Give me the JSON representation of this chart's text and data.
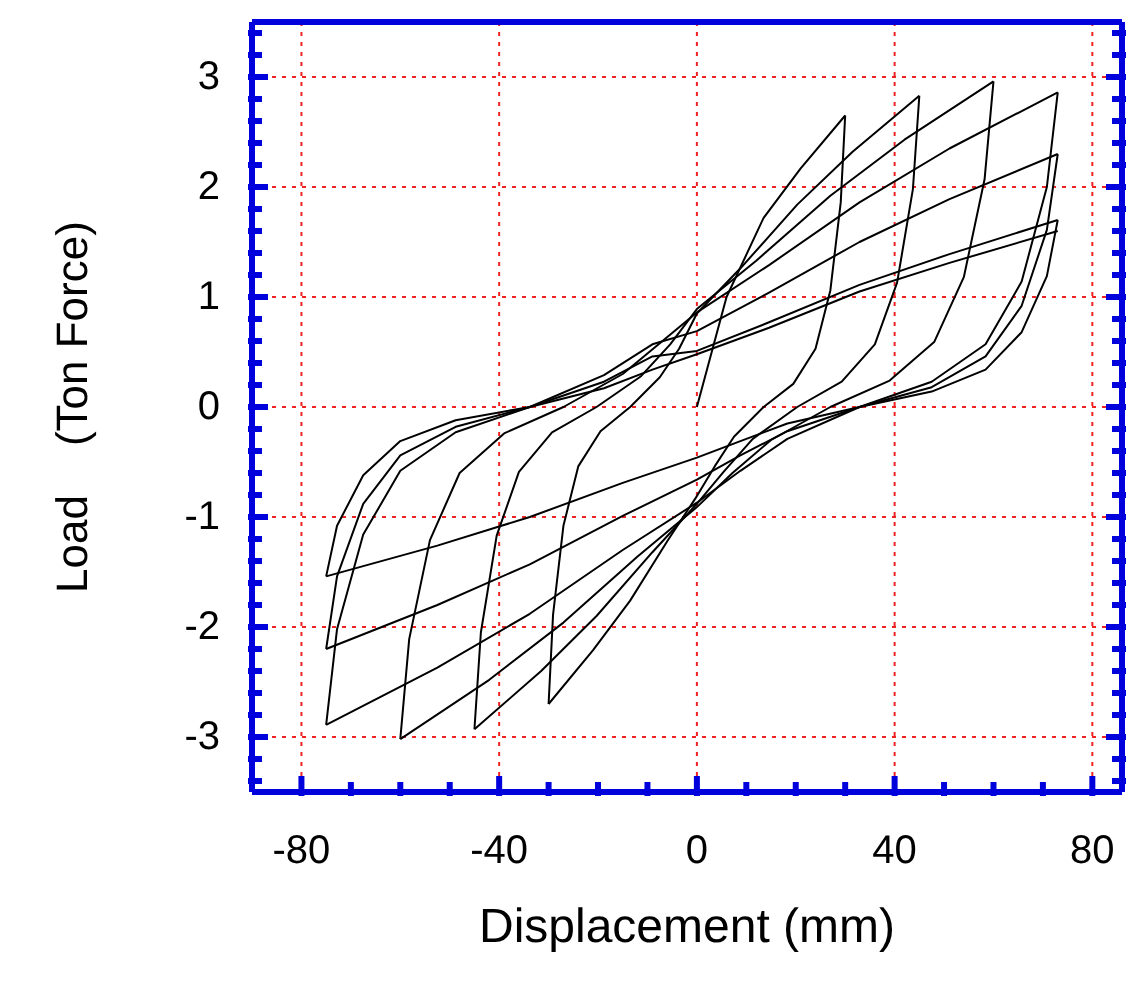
{
  "chart_data": {
    "type": "line",
    "xlabel": "Displacement (mm)",
    "ylabel": "Load    (Ton Force)",
    "marker": "none",
    "line_style": "solid",
    "grid": true,
    "xlim": [
      -90,
      86
    ],
    "ylim": [
      -3.5,
      3.5
    ],
    "xticks": [
      -80,
      {
        "value": -70,
        "label": null
      },
      {
        "value": -60,
        "label": null
      },
      {
        "value": -50,
        "label": null
      },
      -40,
      {
        "value": -30,
        "label": null
      },
      {
        "value": -20,
        "label": null
      },
      {
        "value": -10,
        "label": null
      },
      0,
      {
        "value": 10,
        "label": null
      },
      {
        "value": 20,
        "label": null
      },
      {
        "value": 30,
        "label": null
      },
      40,
      {
        "value": 50,
        "label": null
      },
      {
        "value": 60,
        "label": null
      },
      {
        "value": 70,
        "label": null
      },
      80
    ],
    "yticks": [
      {
        "value": -3.4,
        "label": null
      },
      {
        "value": -3.2,
        "label": null
      },
      -3,
      {
        "value": -2.8,
        "label": null
      },
      {
        "value": -2.6,
        "label": null
      },
      {
        "value": -2.4,
        "label": null
      },
      {
        "value": -2.2,
        "label": null
      },
      -2,
      {
        "value": -1.8,
        "label": null
      },
      {
        "value": -1.6,
        "label": null
      },
      {
        "value": -1.4,
        "label": null
      },
      {
        "value": -1.2,
        "label": null
      },
      -1,
      {
        "value": -0.8,
        "label": null
      },
      {
        "value": -0.6,
        "label": null
      },
      {
        "value": -0.4,
        "label": null
      },
      {
        "value": -0.2,
        "label": null
      },
      0,
      {
        "value": 0.2,
        "label": null
      },
      {
        "value": 0.4,
        "label": null
      },
      {
        "value": 0.6,
        "label": null
      },
      {
        "value": 0.8,
        "label": null
      },
      1,
      {
        "value": 1.2,
        "label": null
      },
      {
        "value": 1.4,
        "label": null
      },
      {
        "value": 1.6,
        "label": null
      },
      {
        "value": 1.8,
        "label": null
      },
      2,
      {
        "value": 2.2,
        "label": null
      },
      {
        "value": 2.4,
        "label": null
      },
      {
        "value": 2.6,
        "label": null
      },
      {
        "value": 2.8,
        "label": null
      },
      3,
      {
        "value": 3.2,
        "label": null
      },
      {
        "value": 3.4,
        "label": null
      }
    ],
    "series": [
      {
        "color": "#000000",
        "x": [
          0,
          3,
          6,
          13.5,
          21,
          30
        ],
        "values": [
          0,
          0.5,
          1.0,
          1.72,
          2.17,
          2.65
        ]
      },
      {
        "color": "#000000",
        "x": [
          30,
          29.1,
          27,
          24,
          19.5,
          13.5,
          7.5,
          3.6,
          0,
          -6,
          -13.5,
          -21,
          -30
        ],
        "values": [
          2.65,
          1.86,
          1.06,
          0.53,
          0.21,
          0,
          -0.27,
          -0.54,
          -0.81,
          -1.22,
          -1.76,
          -2.21,
          -2.7
        ]
      },
      {
        "color": "#000000",
        "x": [
          -30,
          -29.1,
          -27,
          -24,
          -19.5,
          -13.5,
          -7.5,
          -3.6,
          0,
          9,
          20.3,
          31.5,
          45
        ],
        "values": [
          -2.7,
          -1.89,
          -1.08,
          -0.54,
          -0.22,
          0,
          0.27,
          0.53,
          0.85,
          1.27,
          1.84,
          2.32,
          2.83
        ]
      },
      {
        "color": "#000000",
        "x": [
          45,
          43.7,
          40.5,
          36,
          29.3,
          20.3,
          11.3,
          5.4,
          0,
          -9,
          -20.3,
          -31.5,
          -45
        ],
        "values": [
          2.83,
          1.98,
          1.13,
          0.57,
          0.23,
          0,
          -0.29,
          -0.59,
          -0.88,
          -1.32,
          -1.9,
          -2.4,
          -2.93
        ]
      },
      {
        "color": "#000000",
        "x": [
          -45,
          -43.7,
          -40.5,
          -36,
          -29.3,
          -20.3,
          -11.3,
          -5.4,
          0,
          12,
          27,
          42,
          60
        ],
        "values": [
          -2.93,
          -2.05,
          -1.17,
          -0.59,
          -0.23,
          0,
          0.28,
          0.57,
          0.89,
          1.33,
          1.92,
          2.43,
          2.96
        ]
      },
      {
        "color": "#000000",
        "x": [
          60,
          58.2,
          54,
          48,
          39,
          27,
          15,
          7.2,
          0,
          -12,
          -27,
          -42,
          -60
        ],
        "values": [
          2.96,
          2.07,
          1.18,
          0.59,
          0.24,
          0,
          -0.3,
          -0.6,
          -0.91,
          -1.36,
          -1.96,
          -2.48,
          -3.02
        ]
      },
      {
        "color": "#000000",
        "x": [
          -60,
          -58.2,
          -54,
          -48,
          -39,
          -27,
          -15,
          -7.2,
          0,
          14.6,
          32.9,
          51.1,
          73
        ],
        "values": [
          -3.02,
          -2.11,
          -1.21,
          -0.6,
          -0.24,
          0,
          0.3,
          0.59,
          0.86,
          1.29,
          1.86,
          2.35,
          2.86
        ]
      },
      {
        "color": "#000000",
        "x": [
          73,
          70.8,
          65.7,
          58.4,
          47.5,
          32.9,
          18.3,
          8.8,
          0,
          -15,
          -33.8,
          -52.5,
          -75
        ],
        "values": [
          2.86,
          2.0,
          1.14,
          0.57,
          0.23,
          0,
          -0.29,
          -0.58,
          -0.87,
          -1.3,
          -1.88,
          -2.37,
          -2.89
        ]
      },
      {
        "color": "#000000",
        "x": [
          -75,
          -72.8,
          -67.5,
          -60,
          -48.8,
          -33.8,
          -18.8,
          -9,
          0,
          14.6,
          32.9,
          51.1,
          73
        ],
        "values": [
          -2.89,
          -2.02,
          -1.16,
          -0.58,
          -0.23,
          0,
          0.29,
          0.57,
          0.69,
          1.04,
          1.5,
          1.89,
          2.3
        ]
      },
      {
        "color": "#000000",
        "x": [
          73,
          70.8,
          65.7,
          58.4,
          47.5,
          32.9,
          18.3,
          8.8,
          0,
          -15,
          -33.8,
          -52.5,
          -75
        ],
        "values": [
          2.3,
          1.61,
          0.92,
          0.46,
          0.18,
          0,
          -0.22,
          -0.44,
          -0.66,
          -0.99,
          -1.43,
          -1.8,
          -2.2
        ]
      },
      {
        "color": "#000000",
        "x": [
          -75,
          -72.8,
          -67.5,
          -60,
          -48.8,
          -33.8,
          -18.8,
          -9,
          0,
          14.6,
          32.9,
          51.1,
          73
        ],
        "values": [
          -2.2,
          -1.54,
          -0.88,
          -0.44,
          -0.18,
          0,
          0.23,
          0.46,
          0.51,
          0.77,
          1.11,
          1.39,
          1.7
        ]
      },
      {
        "color": "#000000",
        "x": [
          73,
          70.8,
          65.7,
          58.4,
          47.5,
          32.9,
          18.3,
          8.8,
          0,
          -15,
          -33.8,
          -52.5,
          -75
        ],
        "values": [
          1.7,
          1.19,
          0.68,
          0.34,
          0.14,
          0,
          -0.15,
          -0.31,
          -0.46,
          -0.69,
          -1.0,
          -1.26,
          -1.54
        ]
      },
      {
        "color": "#000000",
        "x": [
          -75,
          -72.8,
          -67.5,
          -60,
          -48.8,
          -33.8,
          -18.8,
          -9,
          0,
          14.6,
          32.9,
          51.1,
          73
        ],
        "values": [
          -1.54,
          -1.08,
          -0.62,
          -0.31,
          -0.12,
          0,
          0.17,
          0.34,
          0.48,
          0.72,
          1.05,
          1.31,
          1.6
        ]
      }
    ]
  }
}
